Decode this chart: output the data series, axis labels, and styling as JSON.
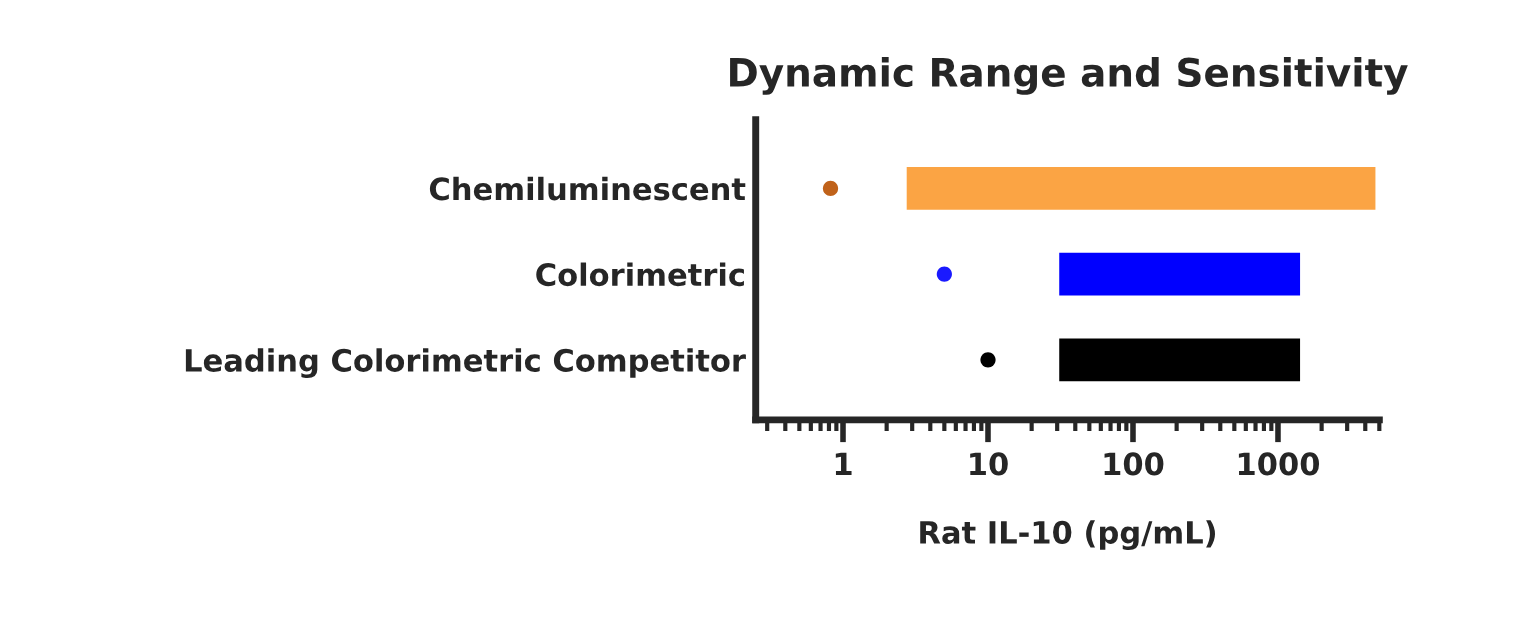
{
  "chart_data": {
    "type": "bar",
    "orientation": "horizontal",
    "title": "Dynamic Range and Sensitivity",
    "xlabel": "Rat IL-10 (pg/mL)",
    "categories": [
      "Chemiluminescent",
      "Colorimetric",
      "Leading Colorimetric Competitor"
    ],
    "series": [
      {
        "colors": [
          "#fba444",
          "#0000ff",
          "#000000"
        ],
        "base": [
          2.75,
          31,
          31
        ],
        "values": [
          4697.25,
          1389,
          1389
        ]
      },
      {
        "type": "scatter",
        "colors": [
          "#c0621a",
          "#1a1aff",
          "#000000"
        ],
        "values": [
          0.82,
          5,
          10
        ]
      }
    ],
    "log": "x",
    "xlim": [
      0.25,
      5000
    ],
    "xticks": [
      1,
      10,
      100,
      1000
    ],
    "grid": false,
    "legend": false
  }
}
